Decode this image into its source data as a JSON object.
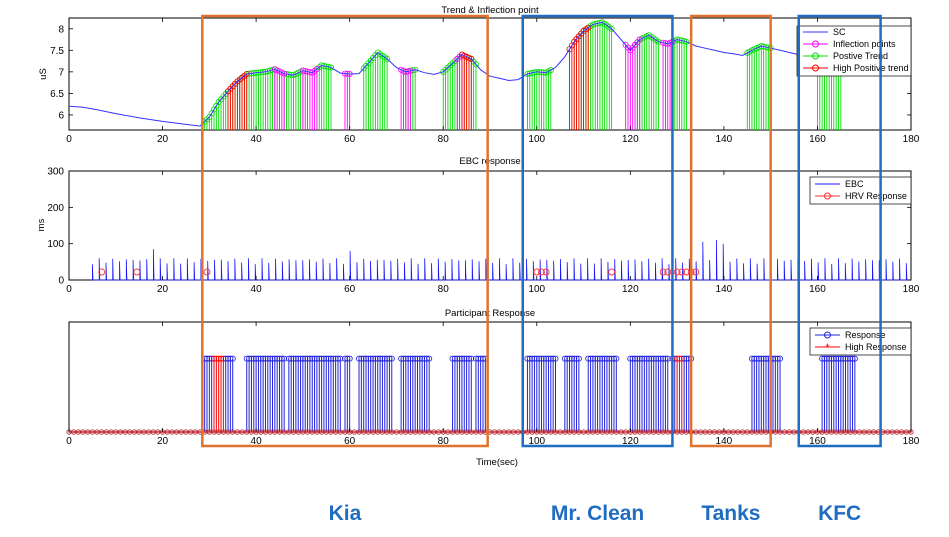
{
  "chart_data": [
    {
      "type": "line",
      "title": "Trend & Inflection point",
      "ylabel": "uS",
      "xlim": [
        0,
        180
      ],
      "ylim": [
        5.65,
        8.25
      ],
      "xticks": [
        0,
        20,
        40,
        60,
        80,
        100,
        120,
        140,
        160,
        180
      ],
      "xtick_labels": [
        "0",
        "20",
        "40",
        "60",
        "80",
        "100",
        "120",
        "140",
        "160",
        "180"
      ],
      "yticks": [
        6,
        6.5,
        7,
        7.5,
        8
      ],
      "ytick_labels": [
        "6",
        "6.5",
        "7",
        "7.5",
        "8"
      ],
      "legend": [
        "SC",
        "Inflection points",
        "Postive Trend",
        "High Positive trend"
      ],
      "legend_position": "top-right",
      "sc_curve": {
        "x": [
          0,
          3,
          6,
          10,
          15,
          20,
          25,
          28,
          30,
          32,
          34,
          36,
          38,
          40,
          42,
          44,
          46,
          48,
          50,
          52,
          54,
          56,
          58,
          60,
          62,
          64,
          66,
          68,
          70,
          72,
          74,
          76,
          78,
          80,
          82,
          84,
          86,
          88,
          90,
          92,
          94,
          96,
          98,
          100,
          102,
          104,
          106,
          108,
          110,
          112,
          114,
          116,
          118,
          120,
          122,
          124,
          126,
          128,
          130,
          132,
          134,
          136,
          138,
          140,
          142,
          144,
          146,
          148,
          150,
          152,
          154,
          156,
          158,
          160,
          162,
          164,
          166,
          168,
          170,
          172,
          174,
          176,
          178,
          180
        ],
        "y": [
          6.2,
          6.18,
          6.12,
          6.03,
          5.93,
          5.85,
          5.78,
          5.74,
          5.95,
          6.3,
          6.55,
          6.78,
          6.95,
          6.98,
          7.0,
          7.06,
          6.96,
          6.92,
          7.03,
          6.98,
          7.15,
          7.1,
          6.97,
          6.95,
          6.96,
          7.2,
          7.45,
          7.3,
          7.1,
          7.0,
          7.05,
          6.98,
          6.94,
          7.0,
          7.2,
          7.4,
          7.3,
          7.05,
          6.9,
          6.85,
          6.8,
          6.82,
          6.95,
          7.0,
          6.98,
          7.1,
          7.35,
          7.7,
          7.95,
          8.1,
          8.15,
          8.0,
          7.75,
          7.5,
          7.75,
          7.85,
          7.7,
          7.65,
          7.75,
          7.7,
          7.6,
          7.55,
          7.5,
          7.45,
          7.42,
          7.38,
          7.5,
          7.6,
          7.55,
          7.5,
          7.45,
          7.4,
          7.35,
          7.2,
          7.1,
          7.05,
          7.0,
          7.05,
          7.25,
          7.45,
          7.5,
          7.52,
          7.6,
          7.62
        ]
      },
      "positive_trend_ranges": [
        [
          29,
          44
        ],
        [
          46,
          50
        ],
        [
          53,
          56
        ],
        [
          63,
          68
        ],
        [
          72,
          74
        ],
        [
          80,
          87
        ],
        [
          98,
          103
        ],
        [
          108,
          116
        ],
        [
          121,
          126
        ],
        [
          129,
          132
        ],
        [
          145,
          150
        ],
        [
          160,
          165
        ]
      ],
      "high_positive_trend_ranges": [
        [
          34,
          38
        ],
        [
          84,
          86
        ],
        [
          107,
          111
        ]
      ],
      "inflection_ranges": [
        [
          44,
          46
        ],
        [
          50,
          53
        ],
        [
          59,
          60
        ],
        [
          71,
          73
        ],
        [
          83,
          84
        ],
        [
          119,
          122
        ],
        [
          127,
          129
        ]
      ]
    },
    {
      "type": "line",
      "title": "EBC response",
      "ylabel": "ms",
      "xlim": [
        0,
        180
      ],
      "ylim": [
        0,
        300
      ],
      "xticks": [
        0,
        20,
        40,
        60,
        80,
        100,
        120,
        140,
        160,
        180
      ],
      "xtick_labels": [
        "0",
        "20",
        "40",
        "60",
        "80",
        "100",
        "120",
        "140",
        "160",
        "180"
      ],
      "yticks": [
        0,
        100,
        200,
        300
      ],
      "ytick_labels": [
        "0",
        "100",
        "200",
        "300"
      ],
      "legend": [
        "EBC",
        "HRV Response"
      ],
      "legend_position": "top-right",
      "ebc_start": 5,
      "ebc_end": 180,
      "ebc_spacing": 1.45,
      "ebc_typical_peak": 60,
      "ebc_peaks": [
        [
          18,
          85
        ],
        [
          60,
          80
        ],
        [
          136,
          105
        ],
        [
          138,
          110
        ],
        [
          140,
          100
        ]
      ],
      "hrv_response_x": [
        7,
        14.5,
        29.5,
        100,
        101,
        102,
        116,
        127,
        128,
        130,
        131,
        132,
        133,
        134
      ]
    },
    {
      "type": "bar",
      "title": "Participant Response",
      "xlabel": "Time(sec)",
      "xlim": [
        0,
        180
      ],
      "ylim": [
        0,
        1.5
      ],
      "xticks": [
        0,
        20,
        40,
        60,
        80,
        100,
        120,
        140,
        160,
        180
      ],
      "xtick_labels": [
        "0",
        "20",
        "40",
        "60",
        "80",
        "100",
        "120",
        "140",
        "160",
        "180"
      ],
      "legend": [
        "Response",
        "High Response"
      ],
      "legend_position": "top-right",
      "response_value": 1,
      "response_ranges": [
        [
          29,
          35
        ],
        [
          38,
          46
        ],
        [
          47,
          58
        ],
        [
          59,
          60
        ],
        [
          62,
          69
        ],
        [
          71,
          77
        ],
        [
          82,
          86
        ],
        [
          87,
          89
        ],
        [
          98,
          104
        ],
        [
          106,
          109
        ],
        [
          111,
          117
        ],
        [
          120,
          128
        ],
        [
          129,
          133
        ],
        [
          146,
          152
        ],
        [
          161,
          168
        ]
      ],
      "high_response_ranges": [
        [
          31,
          33
        ],
        [
          130,
          131
        ]
      ]
    }
  ],
  "segments": [
    {
      "label": "Kia",
      "x_start": 28.5,
      "x_end": 89.5,
      "color": "#e0722e"
    },
    {
      "label": "Mr. Clean",
      "x_start": 97,
      "x_end": 129,
      "color": "#1f6cc0"
    },
    {
      "label": "Tanks",
      "x_start": 133,
      "x_end": 150,
      "color": "#e0722e"
    },
    {
      "label": "KFC",
      "x_start": 156,
      "x_end": 173.5,
      "color": "#1f6cc0"
    }
  ],
  "colors": {
    "sc": "#3333ff",
    "inflection": "#ff00ff",
    "positive_trend": "#00dd00",
    "high_positive": "#ff0000",
    "ebc": "#1a1aff",
    "hrv": "#ff3333",
    "response": "#2222dd",
    "high_response": "#ff0000",
    "segment_label": "#1f6cc0"
  }
}
